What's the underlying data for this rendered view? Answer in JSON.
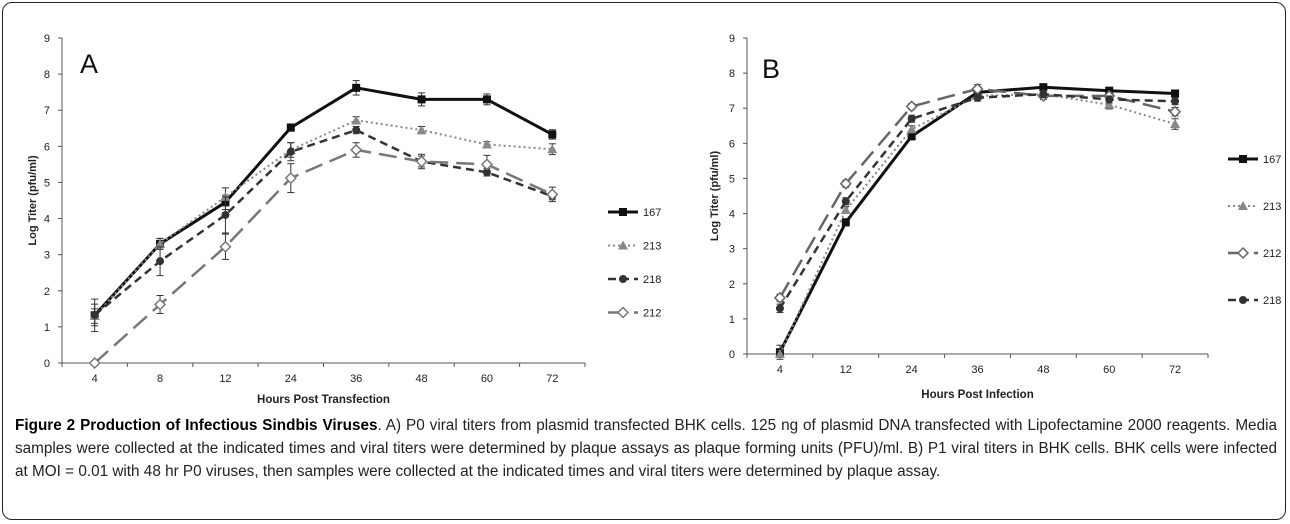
{
  "caption": {
    "figure_title": "Figure 2 Production of Infectious Sindbis Viruses",
    "body": ". A) P0 viral titers from plasmid transfected BHK cells. 125 ng of plasmid DNA transfected with Lipofectamine 2000 reagents. Media samples were collected at the indicated times and viral titers were determined by plaque assays as plaque forming units (PFU)/ml. B) P1 viral titers in BHK cells. BHK cells were infected at MOI = 0.01 with 48 hr P0 viruses, then samples were collected at the indicated times and viral titers were determined by plaque assay."
  },
  "chart_data": [
    {
      "type": "line",
      "panel_label": "A",
      "title": "",
      "xlabel": "Hours Post Transfection",
      "ylabel": "Log Titer (pfu/ml)",
      "categories": [
        "4",
        "8",
        "12",
        "24",
        "36",
        "48",
        "60",
        "72"
      ],
      "yticks": [
        "0",
        "1",
        "2",
        "3",
        "4",
        "5",
        "6",
        "7",
        "8",
        "9"
      ],
      "ylim": [
        0,
        9
      ],
      "grid": false,
      "legend_position": "right",
      "series": [
        {
          "name": "167",
          "values": [
            1.32,
            3.3,
            4.45,
            6.52,
            7.62,
            7.3,
            7.3,
            6.33
          ],
          "error": [
            0.45,
            0.15,
            0.2,
            0.1,
            0.2,
            0.18,
            0.15,
            0.13
          ],
          "color": "#111111",
          "dash": "",
          "width": 3,
          "marker": "square"
        },
        {
          "name": "213",
          "values": [
            1.3,
            3.3,
            4.6,
            5.9,
            6.72,
            6.45,
            6.05,
            5.92
          ],
          "error": [
            0.2,
            0.15,
            0.25,
            0.2,
            0.1,
            0.1,
            0.08,
            0.15
          ],
          "color": "#888888",
          "dash": "2 3",
          "width": 2,
          "marker": "triangle"
        },
        {
          "name": "218",
          "values": [
            1.33,
            2.82,
            4.1,
            5.85,
            6.45,
            5.58,
            5.28,
            4.62
          ],
          "error": [
            0.3,
            0.4,
            0.5,
            0.25,
            0.1,
            0.15,
            0.1,
            0.1
          ],
          "color": "#333333",
          "dash": "8 5",
          "width": 2.5,
          "marker": "circle"
        },
        {
          "name": "212",
          "values": [
            0.0,
            1.62,
            3.22,
            5.12,
            5.9,
            5.58,
            5.5,
            4.67
          ],
          "error": [
            0.05,
            0.25,
            0.35,
            0.4,
            0.2,
            0.2,
            0.25,
            0.2
          ],
          "color": "#777777",
          "dash": "18 8",
          "width": 2.5,
          "marker": "diamond"
        }
      ]
    },
    {
      "type": "line",
      "panel_label": "B",
      "title": "",
      "xlabel": "Hours Post Infection",
      "ylabel": "Log Titer (pfu/ml)",
      "categories": [
        "4",
        "12",
        "24",
        "36",
        "48",
        "60",
        "72"
      ],
      "yticks": [
        "0",
        "1",
        "2",
        "3",
        "4",
        "5",
        "6",
        "7",
        "8",
        "9"
      ],
      "ylim": [
        0,
        9
      ],
      "grid": false,
      "legend_position": "right",
      "series": [
        {
          "name": "167",
          "values": [
            0.05,
            3.75,
            6.2,
            7.45,
            7.6,
            7.5,
            7.42
          ],
          "error": [
            0.2,
            0.1,
            0.1,
            0.08,
            0.07,
            0.07,
            0.08
          ],
          "color": "#111111",
          "dash": "",
          "width": 3,
          "marker": "square"
        },
        {
          "name": "213",
          "values": [
            0.0,
            4.1,
            6.4,
            7.35,
            7.4,
            7.1,
            6.55
          ],
          "error": [
            0.1,
            0.1,
            0.1,
            0.1,
            0.1,
            0.12,
            0.15
          ],
          "color": "#888888",
          "dash": "2 3",
          "width": 2,
          "marker": "triangle"
        },
        {
          "name": "212",
          "values": [
            1.6,
            4.85,
            7.05,
            7.55,
            7.35,
            7.35,
            6.9
          ],
          "error": [
            0.1,
            0.1,
            0.08,
            0.12,
            0.1,
            0.1,
            0.12
          ],
          "color": "#666666",
          "dash": "18 8",
          "width": 2.5,
          "marker": "diamond"
        },
        {
          "name": "218",
          "values": [
            1.3,
            4.35,
            6.7,
            7.3,
            7.4,
            7.25,
            7.2
          ],
          "error": [
            0.12,
            0.1,
            0.1,
            0.1,
            0.1,
            0.1,
            0.1
          ],
          "color": "#333333",
          "dash": "8 5",
          "width": 2.5,
          "marker": "circle"
        }
      ]
    }
  ]
}
